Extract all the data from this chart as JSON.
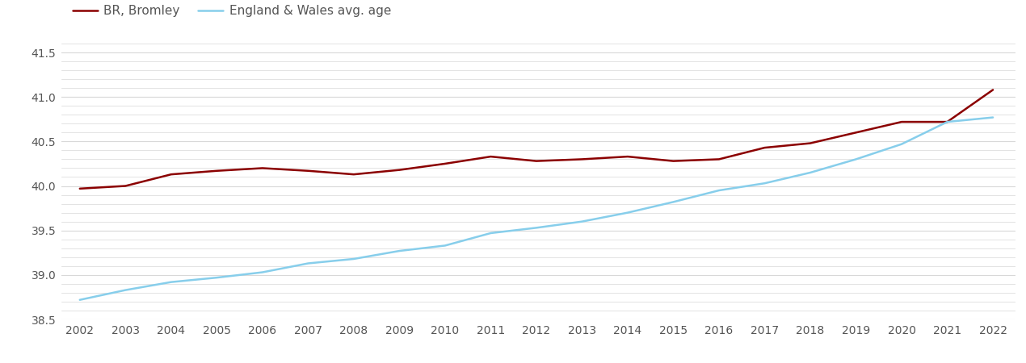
{
  "years": [
    2002,
    2003,
    2004,
    2005,
    2006,
    2007,
    2008,
    2009,
    2010,
    2011,
    2012,
    2013,
    2014,
    2015,
    2016,
    2017,
    2018,
    2019,
    2020,
    2021,
    2022
  ],
  "bromley": [
    39.97,
    40.0,
    40.13,
    40.17,
    40.2,
    40.17,
    40.13,
    40.18,
    40.25,
    40.33,
    40.28,
    40.3,
    40.33,
    40.28,
    40.3,
    40.43,
    40.48,
    40.6,
    40.72,
    40.72,
    41.08
  ],
  "england_wales": [
    38.72,
    38.83,
    38.92,
    38.97,
    39.03,
    39.13,
    39.18,
    39.27,
    39.33,
    39.47,
    39.53,
    39.6,
    39.7,
    39.82,
    39.95,
    40.03,
    40.15,
    40.3,
    40.47,
    40.72,
    40.77
  ],
  "bromley_color": "#8B0000",
  "england_wales_color": "#87CEEB",
  "bromley_label": "BR, Bromley",
  "england_wales_label": "England & Wales avg. age",
  "ylim": [
    38.5,
    41.6
  ],
  "yticks": [
    38.5,
    39.0,
    39.5,
    40.0,
    40.5,
    41.0,
    41.5
  ],
  "background_color": "#ffffff",
  "grid_color": "#d8d8d8",
  "line_width": 1.8,
  "legend_fontsize": 11,
  "tick_fontsize": 10,
  "tick_color": "#555555"
}
